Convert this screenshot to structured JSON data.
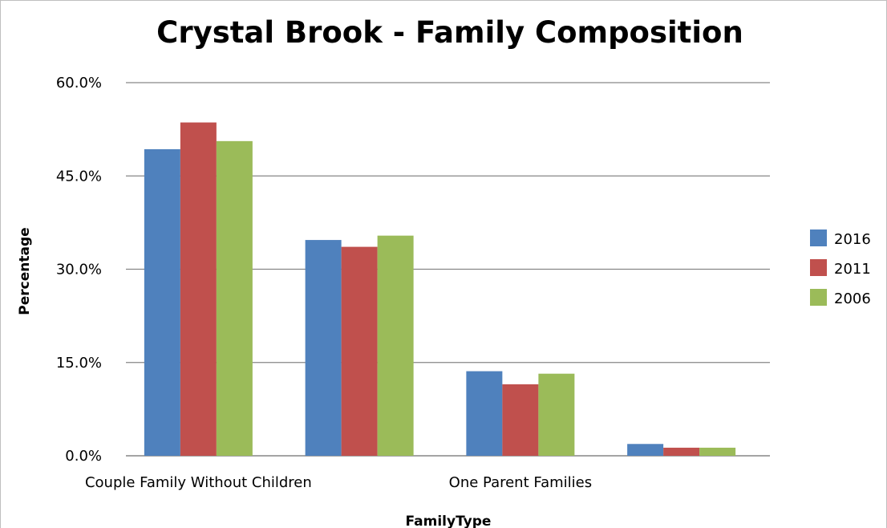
{
  "chart_data": {
    "type": "bar",
    "title": "Crystal Brook - Family Composition",
    "xlabel": "FamilyType",
    "ylabel": "Percentage",
    "ylim": [
      0,
      60
    ],
    "yticks": [
      "0.0%",
      "15.0%",
      "30.0%",
      "45.0%",
      "60.0%"
    ],
    "categories": [
      "Couple Family Without Children",
      "",
      "One Parent Families",
      ""
    ],
    "series": [
      {
        "name": "2016",
        "color": "#4f81bd",
        "values": [
          49.3,
          34.7,
          13.6,
          1.9
        ]
      },
      {
        "name": "2011",
        "color": "#c0504d",
        "values": [
          53.6,
          33.6,
          11.5,
          1.3
        ]
      },
      {
        "name": "2006",
        "color": "#9bbb59",
        "values": [
          50.6,
          35.4,
          13.2,
          1.3
        ]
      }
    ],
    "grid": true,
    "legend": "right"
  }
}
